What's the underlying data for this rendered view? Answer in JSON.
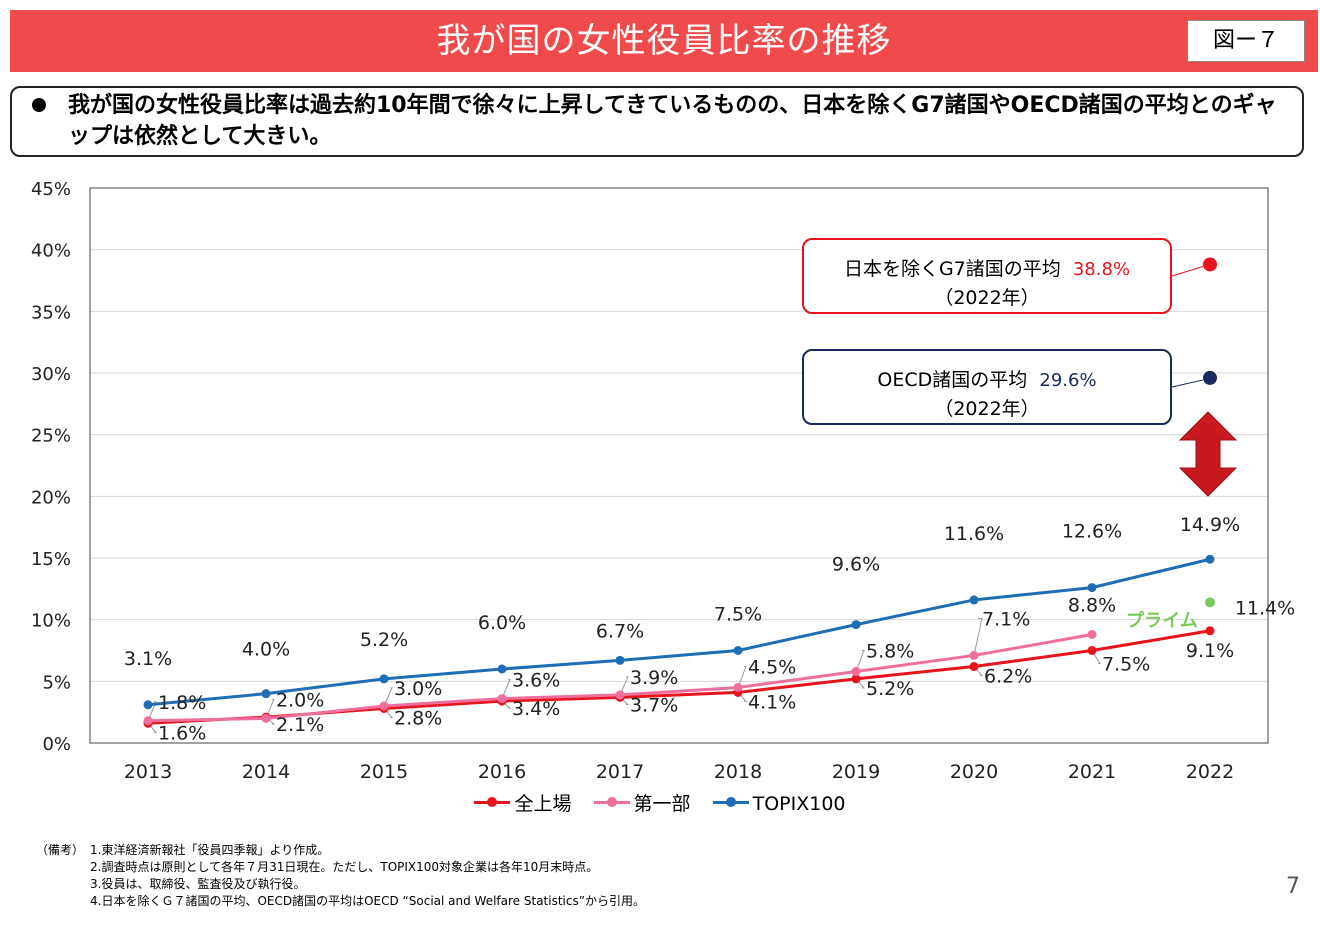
{
  "header": {
    "title": "我が国の女性役員比率の推移",
    "figure_label": "図ー７"
  },
  "summary": {
    "text": "我が国の女性役員比率は過去約10年間で徐々に上昇してきているものの、日本を除くG7諸国やOECD諸国の平均とのギャップは依然として大きい。"
  },
  "callouts": {
    "g7": {
      "label": "日本を除くG7諸国の平均",
      "value": "38.8%",
      "year": "（2022年）"
    },
    "oecd": {
      "label": "OECD諸国の平均",
      "value": "29.6%",
      "year": "（2022年）"
    }
  },
  "colors": {
    "zen_jojo": "#e8141c",
    "dai_ichibu": "#f06e9c",
    "topix100": "#1f6db5",
    "prime": "#7ac95a",
    "g7": "#e8141c",
    "oecd": "#1b2a5e",
    "arrow": "#c8191f",
    "title_bar": "#f04a4a"
  },
  "chart_data": {
    "type": "line",
    "categories": [
      "2013",
      "2014",
      "2015",
      "2016",
      "2017",
      "2018",
      "2019",
      "2020",
      "2021",
      "2022"
    ],
    "ylim": [
      0,
      45
    ],
    "ytick_labels": [
      "0%",
      "5%",
      "10%",
      "15%",
      "20%",
      "25%",
      "30%",
      "35%",
      "40%",
      "45%"
    ],
    "series": [
      {
        "name": "全上場",
        "values": [
          1.6,
          2.1,
          2.8,
          3.4,
          3.7,
          4.1,
          5.2,
          6.2,
          7.5,
          9.1
        ],
        "labels": [
          "1.6%",
          "2.1%",
          "2.8%",
          "3.4%",
          "3.7%",
          "4.1%",
          "5.2%",
          "6.2%",
          "7.5%",
          "9.1%"
        ]
      },
      {
        "name": "第一部",
        "values": [
          1.8,
          2.0,
          3.0,
          3.6,
          3.9,
          4.5,
          5.8,
          7.1,
          8.8,
          null
        ],
        "labels": [
          "1.8%",
          "2.0%",
          "3.0%",
          "3.6%",
          "3.9%",
          "4.5%",
          "5.8%",
          "7.1%",
          "8.8%",
          ""
        ]
      },
      {
        "name": "TOPIX100",
        "values": [
          3.1,
          4.0,
          5.2,
          6.0,
          6.7,
          7.5,
          9.6,
          11.6,
          12.6,
          14.9
        ],
        "labels": [
          "3.1%",
          "4.0%",
          "5.2%",
          "6.0%",
          "6.7%",
          "7.5%",
          "9.6%",
          "11.6%",
          "12.6%",
          "14.9%"
        ]
      }
    ],
    "extra_points": [
      {
        "name": "プライム",
        "x": "2022",
        "value": 11.4,
        "label": "11.4%"
      },
      {
        "name": "日本を除くG7諸国の平均",
        "x": "2022",
        "value": 38.8
      },
      {
        "name": "OECD諸国の平均",
        "x": "2022",
        "value": 29.6
      }
    ],
    "legend": [
      "全上場",
      "第一部",
      "TOPIX100"
    ],
    "legend_position": "bottom",
    "grid": true
  },
  "notes": {
    "label": "（備考）",
    "items": [
      "1.東洋経済新報社「役員四季報」より作成。",
      "2.調査時点は原則として各年７月31日現在。ただし、TOPIX100対象企業は各年10月末時点。",
      "3.役員は、取締役、監査役及び執行役。",
      "4.日本を除くＧ７諸国の平均、OECD諸国の平均はOECD “Social and Welfare Statistics”から引用。"
    ]
  },
  "page_number": "7"
}
